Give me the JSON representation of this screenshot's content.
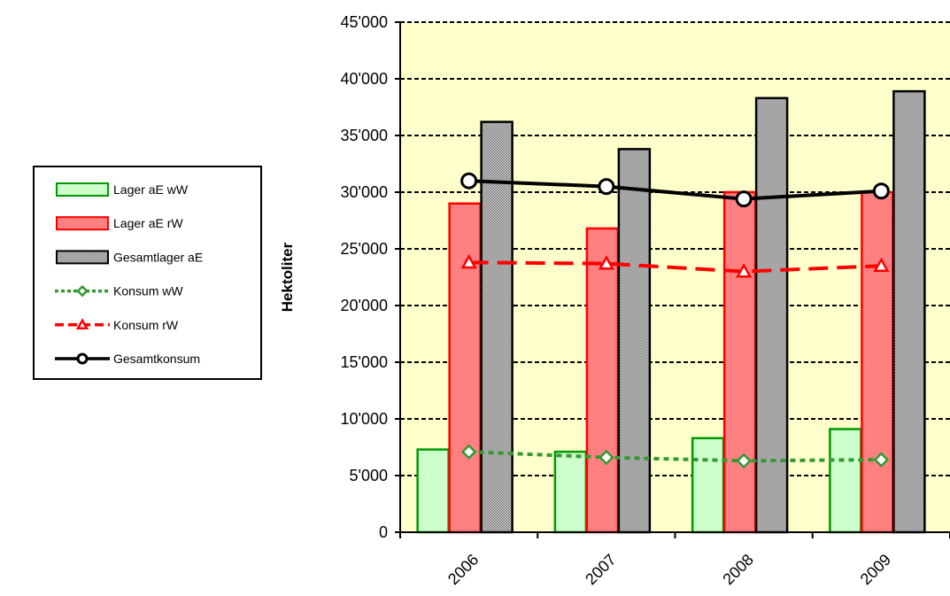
{
  "chart_data": {
    "type": "bar",
    "title": "",
    "xlabel": "",
    "ylabel": "Hektoliter",
    "ylim": [
      0,
      45000
    ],
    "yticks": [
      0,
      5000,
      10000,
      15000,
      20000,
      25000,
      30000,
      35000,
      40000,
      45000
    ],
    "ytick_labels": [
      "0",
      "5'000",
      "10'000",
      "15'000",
      "20'000",
      "25'000",
      "30'000",
      "35'000",
      "40'000",
      "45'000"
    ],
    "categories": [
      "2006",
      "2007",
      "2008",
      "2009"
    ],
    "grid": true,
    "legend_position": "left",
    "plot_background": "#FFFFCC",
    "series": [
      {
        "name": "Lager aE wW",
        "kind": "bar",
        "color": "#CCFFCC",
        "border": "#009900",
        "values": [
          7300,
          7100,
          8300,
          9100
        ]
      },
      {
        "name": "Lager aE rW",
        "kind": "bar",
        "color": "#FF8080",
        "border": "#FF0000",
        "values": [
          29000,
          26800,
          30000,
          30000
        ]
      },
      {
        "name": "Gesamtlager aE",
        "kind": "bar",
        "color": "#C0C0C0",
        "border": "#000000",
        "pattern": "hatched",
        "values": [
          36200,
          33800,
          38300,
          38900
        ]
      },
      {
        "name": "Konsum wW",
        "kind": "line",
        "color": "#339933",
        "dash": "dotted",
        "marker": "diamond",
        "values": [
          7100,
          6600,
          6300,
          6400
        ]
      },
      {
        "name": "Konsum rW",
        "kind": "line",
        "color": "#FF0000",
        "dash": "dashed",
        "marker": "triangle",
        "values": [
          23800,
          23700,
          23000,
          23500
        ]
      },
      {
        "name": "Gesamtkonsum",
        "kind": "line",
        "color": "#000000",
        "dash": "solid",
        "marker": "circle",
        "values": [
          31000,
          30500,
          29400,
          30100
        ]
      }
    ]
  }
}
